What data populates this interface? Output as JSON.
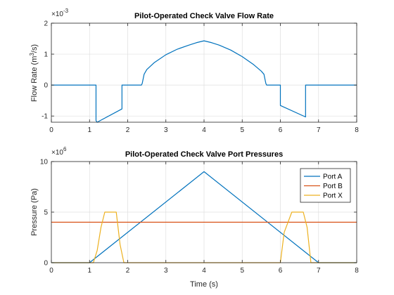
{
  "chart_data": [
    {
      "type": "line",
      "title": "Pilot-Operated Check Valve Flow Rate",
      "xlabel": "",
      "ylabel": "Flow Rate (m³/s)",
      "ylabel_base": "Flow Rate (m",
      "ylabel_sup": "3",
      "ylabel_tail": "/s)",
      "exponent_base": "×10",
      "exponent_power": "-3",
      "xlim": [
        0,
        8
      ],
      "ylim": [
        -1.2,
        2
      ],
      "xticks": [
        0,
        1,
        2,
        3,
        4,
        5,
        6,
        7,
        8
      ],
      "yticks": [
        -1,
        0,
        1,
        2
      ],
      "xtick_labels": [
        "0",
        "1",
        "2",
        "3",
        "4",
        "5",
        "6",
        "7",
        "8"
      ],
      "ytick_labels": [
        "-1",
        "0",
        "1",
        "2"
      ],
      "grid": true,
      "series": [
        {
          "color": "#0072BD",
          "x": [
            0,
            1.17,
            1.17,
            1.2,
            1.85,
            1.85,
            2.36,
            2.38,
            2.43,
            2.5,
            2.7,
            3.0,
            3.3,
            3.6,
            3.8,
            4.0,
            4.2,
            4.4,
            4.7,
            5.0,
            5.3,
            5.5,
            5.57,
            5.62,
            5.64,
            6.0,
            6.0,
            6.66,
            6.66,
            8.0
          ],
          "y": [
            0,
            0,
            -1.15,
            -1.2,
            -0.77,
            0,
            0,
            0.05,
            0.35,
            0.5,
            0.73,
            0.98,
            1.16,
            1.29,
            1.37,
            1.43,
            1.37,
            1.29,
            1.13,
            0.92,
            0.66,
            0.45,
            0.35,
            0.05,
            0,
            0,
            -0.66,
            -1.03,
            0,
            0
          ]
        }
      ]
    },
    {
      "type": "line",
      "title": "Pilot-Operated Check Valve Port Pressures",
      "xlabel": "Time (s)",
      "ylabel": "Pressure (Pa)",
      "exponent_base": "×10",
      "exponent_power": "6",
      "xlim": [
        0,
        8
      ],
      "ylim": [
        0,
        10
      ],
      "xticks": [
        0,
        1,
        2,
        3,
        4,
        5,
        6,
        7,
        8
      ],
      "yticks": [
        0,
        5,
        10
      ],
      "xtick_labels": [
        "0",
        "1",
        "2",
        "3",
        "4",
        "5",
        "6",
        "7",
        "8"
      ],
      "ytick_labels": [
        "0",
        "5",
        "10"
      ],
      "grid": true,
      "legend": "top-right",
      "series": [
        {
          "name": "Port A",
          "color": "#0072BD",
          "x": [
            0,
            1.0,
            4.0,
            7.0,
            8.0
          ],
          "y": [
            0,
            0,
            9.0,
            0,
            0
          ]
        },
        {
          "name": "Port B",
          "color": "#D95319",
          "x": [
            0,
            8.0
          ],
          "y": [
            4.0,
            4.0
          ]
        },
        {
          "name": "Port X",
          "color": "#EDB120",
          "x": [
            0,
            1.1,
            1.2,
            1.3,
            1.4,
            1.7,
            1.8,
            1.9,
            6.0,
            6.1,
            6.3,
            6.6,
            6.7,
            6.8,
            8.0
          ],
          "y": [
            0,
            0,
            1.2,
            3.5,
            5.0,
            5.0,
            1.8,
            0,
            0,
            3.0,
            5.0,
            5.0,
            3.5,
            0,
            0
          ]
        }
      ]
    }
  ]
}
